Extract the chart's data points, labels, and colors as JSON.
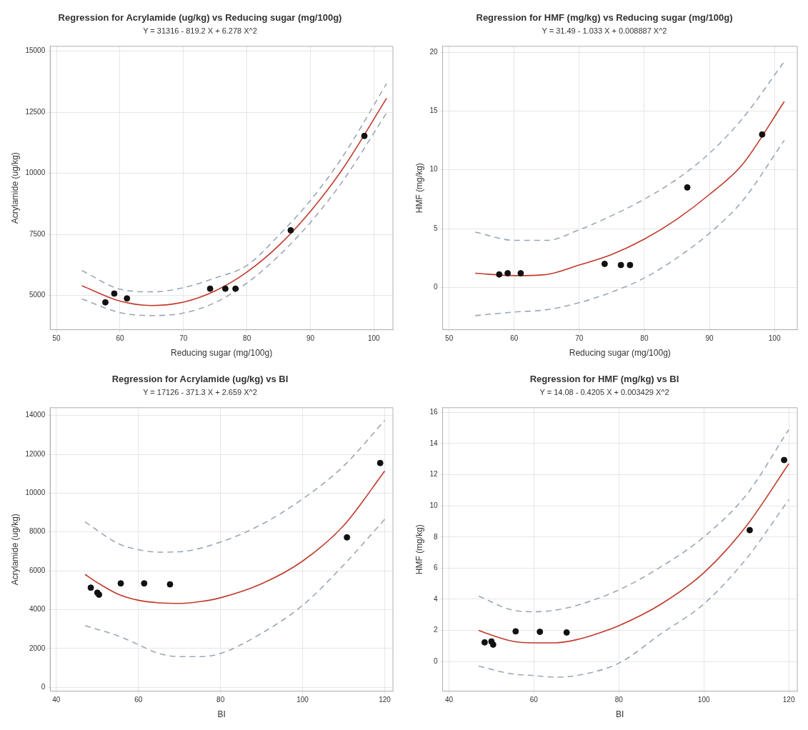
{
  "chart_data": [
    {
      "type": "scatter",
      "title": "Regression for Acrylamide (ug/kg) vs Reducing sugar (mg/100g)",
      "subtitle": "Y = 31316 - 819.2 X + 6.278 X^2",
      "xlabel": "Reducing sugar (mg/100g)",
      "ylabel": "Acrylamide (ug/kg)",
      "xlim": [
        49,
        103
      ],
      "xticks": [
        50,
        60,
        70,
        80,
        90,
        100
      ],
      "ylim": [
        3600,
        15200
      ],
      "yticks": [
        5000,
        7500,
        10000,
        12500,
        15000
      ],
      "grid": true,
      "legend": false,
      "series": [
        {
          "type": "scatter",
          "color": "#111111",
          "marker": "circle",
          "x": [
            57.7,
            59.1,
            61.1,
            74.2,
            76.6,
            78.2,
            86.9,
            98.5
          ],
          "values": [
            4720,
            5080,
            4880,
            5280,
            5280,
            5280,
            7670,
            11530
          ]
        },
        {
          "type": "line",
          "color": "#c0392b",
          "marker": "none",
          "line_style": "solid",
          "x": [
            54,
            60,
            65,
            70,
            75,
            80,
            85,
            90,
            95,
            102
          ],
          "values": [
            5400,
            4770,
            4590,
            4730,
            5190,
            5960,
            7040,
            8440,
            10150,
            13070
          ]
        },
        {
          "type": "line",
          "color": "#9aa7b4",
          "marker": "none",
          "line_style": "dashed",
          "x": [
            54,
            60,
            65,
            70,
            75,
            80,
            85,
            90,
            95,
            102
          ],
          "values": [
            6020,
            5260,
            5150,
            5320,
            5720,
            6230,
            7460,
            8890,
            10650,
            13670
          ]
        },
        {
          "type": "line",
          "color": "#9aa7b4",
          "marker": "none",
          "line_style": "dashed",
          "x": [
            54,
            60,
            65,
            70,
            75,
            80,
            85,
            90,
            95,
            102
          ],
          "values": [
            4860,
            4300,
            4180,
            4280,
            4710,
            5510,
            6620,
            7990,
            9650,
            12470
          ]
        }
      ]
    },
    {
      "type": "scatter",
      "title": "Regression for HMF (mg/kg) vs Reducing sugar (mg/100g)",
      "subtitle": "Y = 31.49 - 1.033 X + 0.008887 X^2",
      "xlabel": "Reducing sugar (mg/100g)",
      "ylabel": "HMF (mg/kg)",
      "xlim": [
        49,
        103.5
      ],
      "xticks": [
        50,
        60,
        70,
        80,
        90,
        100
      ],
      "ylim": [
        -3.6,
        20.5
      ],
      "yticks": [
        0,
        5,
        10,
        15,
        20
      ],
      "grid": true,
      "legend": false,
      "series": [
        {
          "type": "scatter",
          "color": "#111111",
          "marker": "circle",
          "x": [
            57.7,
            59.0,
            61.0,
            73.9,
            76.4,
            77.8,
            86.6,
            98.1
          ],
          "values": [
            1.1,
            1.2,
            1.2,
            2.0,
            1.9,
            1.9,
            8.5,
            13.0
          ]
        },
        {
          "type": "line",
          "color": "#c0392b",
          "marker": "none",
          "line_style": "solid",
          "x": [
            54,
            60,
            65,
            70,
            75,
            80,
            85,
            90,
            95,
            101.5
          ],
          "values": [
            1.2,
            1.0,
            1.1,
            1.9,
            2.8,
            4.1,
            5.8,
            7.9,
            10.4,
            15.8
          ]
        },
        {
          "type": "line",
          "color": "#9aa7b4",
          "marker": "none",
          "line_style": "dashed",
          "x": [
            54,
            60,
            65,
            70,
            75,
            80,
            85,
            90,
            95,
            101.5
          ],
          "values": [
            4.7,
            4.0,
            4.0,
            4.9,
            6.1,
            7.5,
            9.2,
            11.4,
            14.3,
            19.2
          ]
        },
        {
          "type": "line",
          "color": "#9aa7b4",
          "marker": "none",
          "line_style": "dashed",
          "x": [
            54,
            60,
            65,
            70,
            75,
            80,
            85,
            90,
            95,
            101.5
          ],
          "values": [
            -2.4,
            -2.1,
            -1.9,
            -1.3,
            -0.4,
            0.8,
            2.5,
            4.6,
            7.3,
            12.5
          ]
        }
      ]
    },
    {
      "type": "scatter",
      "title": "Regression for Acrylamide (ug/kg) vs BI",
      "subtitle": "Y = 17126 - 371.3 X + 2.659 X^2",
      "xlabel": "BI",
      "ylabel": "Acrylamide (ug/kg)",
      "xlim": [
        38.5,
        122
      ],
      "xticks": [
        40,
        60,
        80,
        100,
        120
      ],
      "ylim": [
        -200,
        14400
      ],
      "yticks": [
        0,
        2000,
        4000,
        6000,
        8000,
        10000,
        12000,
        14000
      ],
      "grid": true,
      "legend": false,
      "series": [
        {
          "type": "scatter",
          "color": "#111111",
          "marker": "circle",
          "x": [
            48.4,
            50.0,
            50.4,
            55.7,
            61.4,
            67.7,
            110.8,
            118.9
          ],
          "values": [
            5130,
            4870,
            4770,
            5350,
            5350,
            5300,
            7720,
            11550
          ]
        },
        {
          "type": "line",
          "color": "#c0392b",
          "marker": "none",
          "line_style": "solid",
          "x": [
            47,
            50,
            55,
            60,
            65,
            70,
            75,
            80,
            90,
            100,
            110,
            120
          ],
          "values": [
            5810,
            5390,
            4800,
            4480,
            4350,
            4320,
            4410,
            4610,
            5330,
            6500,
            8330,
            11140
          ]
        },
        {
          "type": "line",
          "color": "#9aa7b4",
          "marker": "none",
          "line_style": "dashed",
          "x": [
            47,
            55,
            60,
            65,
            70,
            80,
            90,
            100,
            110,
            120
          ],
          "values": [
            8520,
            7410,
            7090,
            6960,
            6980,
            7480,
            8390,
            9700,
            11400,
            13750
          ]
        },
        {
          "type": "line",
          "color": "#9aa7b4",
          "marker": "none",
          "line_style": "dashed",
          "x": [
            47,
            55,
            60,
            65,
            70,
            75,
            80,
            90,
            100,
            110,
            120
          ],
          "values": [
            3170,
            2650,
            2190,
            1740,
            1580,
            1580,
            1740,
            2780,
            4220,
            6300,
            8650
          ]
        }
      ]
    },
    {
      "type": "scatter",
      "title": "Regression for HMF (mg/kg) vs BI",
      "subtitle": "Y = 14.08 - 0.4205 X + 0.003429 X^2",
      "xlabel": "BI",
      "ylabel": "HMF (mg/kg)",
      "xlim": [
        38.5,
        122
      ],
      "xticks": [
        40,
        60,
        80,
        100,
        120
      ],
      "ylim": [
        -1.9,
        16.3
      ],
      "yticks": [
        0,
        2,
        4,
        6,
        8,
        10,
        12,
        14,
        16
      ],
      "grid": true,
      "legend": false,
      "series": [
        {
          "type": "scatter",
          "color": "#111111",
          "marker": "circle",
          "x": [
            48.4,
            50.0,
            50.4,
            55.7,
            61.4,
            67.7,
            110.8,
            118.9
          ],
          "values": [
            1.23,
            1.29,
            1.09,
            1.94,
            1.91,
            1.87,
            8.44,
            12.94
          ]
        },
        {
          "type": "line",
          "color": "#c0392b",
          "marker": "none",
          "line_style": "solid",
          "x": [
            47,
            50,
            55,
            60,
            65,
            70,
            75,
            80,
            90,
            100,
            110,
            120
          ],
          "values": [
            2.0,
            1.7,
            1.3,
            1.2,
            1.2,
            1.4,
            1.8,
            2.3,
            3.7,
            5.7,
            8.7,
            12.7
          ]
        },
        {
          "type": "line",
          "color": "#9aa7b4",
          "marker": "none",
          "line_style": "dashed",
          "x": [
            47,
            55,
            60,
            65,
            70,
            80,
            90,
            100,
            110,
            120
          ],
          "values": [
            4.2,
            3.3,
            3.2,
            3.3,
            3.6,
            4.6,
            6.1,
            8.0,
            10.7,
            14.9
          ]
        },
        {
          "type": "line",
          "color": "#9aa7b4",
          "marker": "none",
          "line_style": "dashed",
          "x": [
            47,
            55,
            60,
            65,
            70,
            80,
            90,
            100,
            110,
            120
          ],
          "values": [
            -0.3,
            -0.8,
            -0.9,
            -1.0,
            -0.9,
            -0.1,
            1.8,
            3.7,
            6.6,
            10.4
          ]
        }
      ]
    }
  ]
}
